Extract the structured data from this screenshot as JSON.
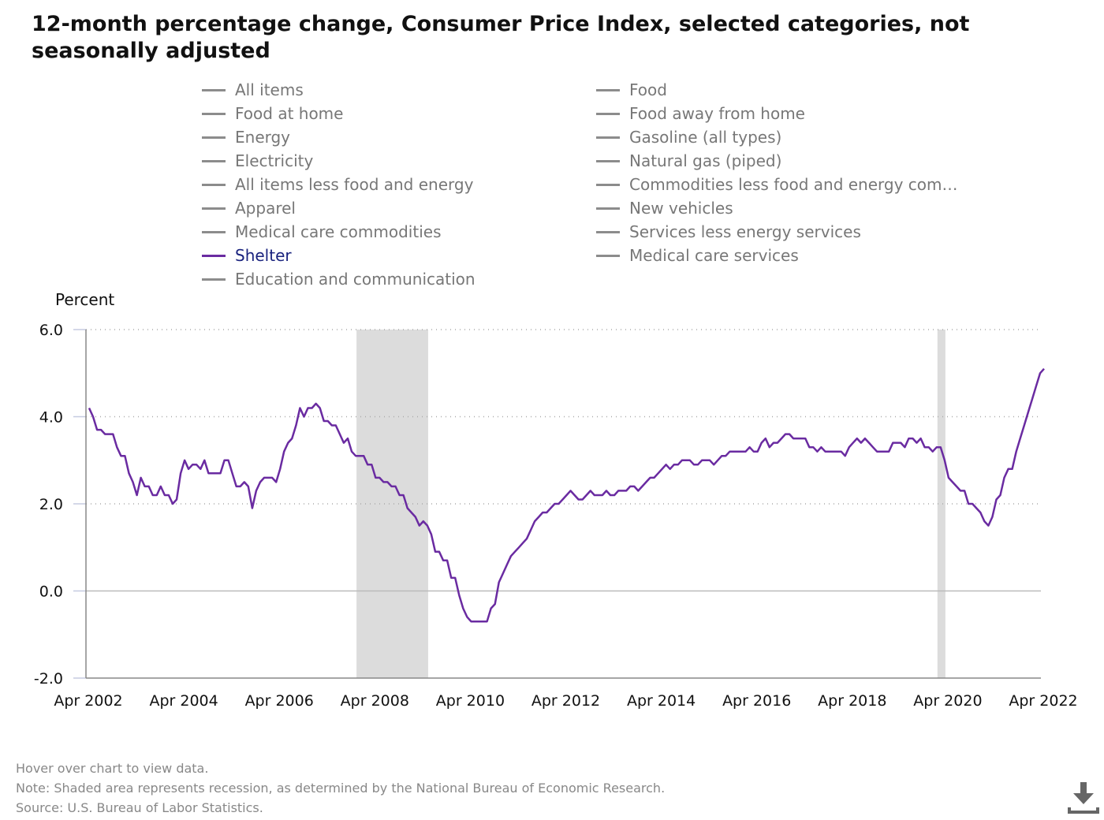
{
  "title": "12-month percentage change, Consumer Price Index, selected categories, not seasonally adjusted",
  "legend": {
    "left": [
      {
        "label": "All items",
        "active": false
      },
      {
        "label": "Food at home",
        "active": false
      },
      {
        "label": "Energy",
        "active": false
      },
      {
        "label": "Electricity",
        "active": false
      },
      {
        "label": "All items less food and energy",
        "active": false
      },
      {
        "label": "Apparel",
        "active": false
      },
      {
        "label": "Medical care commodities",
        "active": false
      },
      {
        "label": "Shelter",
        "active": true
      },
      {
        "label": "Education and communication",
        "active": false
      }
    ],
    "right": [
      {
        "label": "Food",
        "active": false
      },
      {
        "label": "Food away from home",
        "active": false
      },
      {
        "label": "Gasoline (all types)",
        "active": false
      },
      {
        "label": "Natural gas (piped)",
        "active": false
      },
      {
        "label": "Commodities less food and energy com…",
        "active": false
      },
      {
        "label": "New vehicles",
        "active": false
      },
      {
        "label": "Services less energy services",
        "active": false
      },
      {
        "label": "Medical care services",
        "active": false
      }
    ]
  },
  "chart_data": {
    "type": "line",
    "ylabel": "Percent",
    "ylim": [
      -2.0,
      6.0
    ],
    "yticks": [
      "6.0",
      "4.0",
      "2.0",
      "0.0",
      "-2.0"
    ],
    "ytick_values": [
      6,
      4,
      2,
      0,
      -2
    ],
    "x_range": [
      "2002-04",
      "2022-04"
    ],
    "xticks": [
      "Apr 2002",
      "Apr 2004",
      "Apr 2006",
      "Apr 2008",
      "Apr 2010",
      "Apr 2012",
      "Apr 2014",
      "Apr 2016",
      "Apr 2018",
      "Apr 2020",
      "Apr 2022"
    ],
    "xtick_values": [
      "2002-04",
      "2004-04",
      "2006-04",
      "2008-04",
      "2010-04",
      "2012-04",
      "2014-04",
      "2016-04",
      "2018-04",
      "2020-04",
      "2022-04"
    ],
    "recessions": [
      {
        "start": "2007-12",
        "end": "2009-06"
      },
      {
        "start": "2020-02",
        "end": "2020-04"
      }
    ],
    "grid": true,
    "colors": {
      "series": "#6a2ba1",
      "recession": "#dcdcdc",
      "grid": "#aaaaaa",
      "axis": "#888888"
    },
    "series": [
      {
        "name": "Shelter",
        "points": [
          [
            "2002-04",
            4.2
          ],
          [
            "2002-05",
            4.0
          ],
          [
            "2002-06",
            3.7
          ],
          [
            "2002-07",
            3.7
          ],
          [
            "2002-08",
            3.6
          ],
          [
            "2002-09",
            3.6
          ],
          [
            "2002-10",
            3.6
          ],
          [
            "2002-11",
            3.3
          ],
          [
            "2002-12",
            3.1
          ],
          [
            "2003-01",
            3.1
          ],
          [
            "2003-02",
            2.7
          ],
          [
            "2003-03",
            2.5
          ],
          [
            "2003-04",
            2.2
          ],
          [
            "2003-05",
            2.6
          ],
          [
            "2003-06",
            2.4
          ],
          [
            "2003-07",
            2.4
          ],
          [
            "2003-08",
            2.2
          ],
          [
            "2003-09",
            2.2
          ],
          [
            "2003-10",
            2.4
          ],
          [
            "2003-11",
            2.2
          ],
          [
            "2003-12",
            2.2
          ],
          [
            "2004-01",
            2.0
          ],
          [
            "2004-02",
            2.1
          ],
          [
            "2004-03",
            2.7
          ],
          [
            "2004-04",
            3.0
          ],
          [
            "2004-05",
            2.8
          ],
          [
            "2004-06",
            2.9
          ],
          [
            "2004-07",
            2.9
          ],
          [
            "2004-08",
            2.8
          ],
          [
            "2004-09",
            3.0
          ],
          [
            "2004-10",
            2.7
          ],
          [
            "2004-11",
            2.7
          ],
          [
            "2004-12",
            2.7
          ],
          [
            "2005-01",
            2.7
          ],
          [
            "2005-02",
            3.0
          ],
          [
            "2005-03",
            3.0
          ],
          [
            "2005-04",
            2.7
          ],
          [
            "2005-05",
            2.4
          ],
          [
            "2005-06",
            2.4
          ],
          [
            "2005-07",
            2.5
          ],
          [
            "2005-08",
            2.4
          ],
          [
            "2005-09",
            1.9
          ],
          [
            "2005-10",
            2.3
          ],
          [
            "2005-11",
            2.5
          ],
          [
            "2005-12",
            2.6
          ],
          [
            "2006-01",
            2.6
          ],
          [
            "2006-02",
            2.6
          ],
          [
            "2006-03",
            2.5
          ],
          [
            "2006-04",
            2.8
          ],
          [
            "2006-05",
            3.2
          ],
          [
            "2006-06",
            3.4
          ],
          [
            "2006-07",
            3.5
          ],
          [
            "2006-08",
            3.8
          ],
          [
            "2006-09",
            4.2
          ],
          [
            "2006-10",
            4.0
          ],
          [
            "2006-11",
            4.2
          ],
          [
            "2006-12",
            4.2
          ],
          [
            "2007-01",
            4.3
          ],
          [
            "2007-02",
            4.2
          ],
          [
            "2007-03",
            3.9
          ],
          [
            "2007-04",
            3.9
          ],
          [
            "2007-05",
            3.8
          ],
          [
            "2007-06",
            3.8
          ],
          [
            "2007-07",
            3.6
          ],
          [
            "2007-08",
            3.4
          ],
          [
            "2007-09",
            3.5
          ],
          [
            "2007-10",
            3.2
          ],
          [
            "2007-11",
            3.1
          ],
          [
            "2007-12",
            3.1
          ],
          [
            "2008-01",
            3.1
          ],
          [
            "2008-02",
            2.9
          ],
          [
            "2008-03",
            2.9
          ],
          [
            "2008-04",
            2.6
          ],
          [
            "2008-05",
            2.6
          ],
          [
            "2008-06",
            2.5
          ],
          [
            "2008-07",
            2.5
          ],
          [
            "2008-08",
            2.4
          ],
          [
            "2008-09",
            2.4
          ],
          [
            "2008-10",
            2.2
          ],
          [
            "2008-11",
            2.2
          ],
          [
            "2008-12",
            1.9
          ],
          [
            "2009-01",
            1.8
          ],
          [
            "2009-02",
            1.7
          ],
          [
            "2009-03",
            1.5
          ],
          [
            "2009-04",
            1.6
          ],
          [
            "2009-05",
            1.5
          ],
          [
            "2009-06",
            1.3
          ],
          [
            "2009-07",
            0.9
          ],
          [
            "2009-08",
            0.9
          ],
          [
            "2009-09",
            0.7
          ],
          [
            "2009-10",
            0.7
          ],
          [
            "2009-11",
            0.3
          ],
          [
            "2009-12",
            0.3
          ],
          [
            "2010-01",
            -0.1
          ],
          [
            "2010-02",
            -0.4
          ],
          [
            "2010-03",
            -0.6
          ],
          [
            "2010-04",
            -0.7
          ],
          [
            "2010-05",
            -0.7
          ],
          [
            "2010-06",
            -0.7
          ],
          [
            "2010-07",
            -0.7
          ],
          [
            "2010-08",
            -0.7
          ],
          [
            "2010-09",
            -0.4
          ],
          [
            "2010-10",
            -0.3
          ],
          [
            "2010-11",
            0.2
          ],
          [
            "2010-12",
            0.4
          ],
          [
            "2011-01",
            0.6
          ],
          [
            "2011-02",
            0.8
          ],
          [
            "2011-03",
            0.9
          ],
          [
            "2011-04",
            1.0
          ],
          [
            "2011-05",
            1.1
          ],
          [
            "2011-06",
            1.2
          ],
          [
            "2011-07",
            1.4
          ],
          [
            "2011-08",
            1.6
          ],
          [
            "2011-09",
            1.7
          ],
          [
            "2011-10",
            1.8
          ],
          [
            "2011-11",
            1.8
          ],
          [
            "2011-12",
            1.9
          ],
          [
            "2012-01",
            2.0
          ],
          [
            "2012-02",
            2.0
          ],
          [
            "2012-03",
            2.1
          ],
          [
            "2012-04",
            2.2
          ],
          [
            "2012-05",
            2.3
          ],
          [
            "2012-06",
            2.2
          ],
          [
            "2012-07",
            2.1
          ],
          [
            "2012-08",
            2.1
          ],
          [
            "2012-09",
            2.2
          ],
          [
            "2012-10",
            2.3
          ],
          [
            "2012-11",
            2.2
          ],
          [
            "2012-12",
            2.2
          ],
          [
            "2013-01",
            2.2
          ],
          [
            "2013-02",
            2.3
          ],
          [
            "2013-03",
            2.2
          ],
          [
            "2013-04",
            2.2
          ],
          [
            "2013-05",
            2.3
          ],
          [
            "2013-06",
            2.3
          ],
          [
            "2013-07",
            2.3
          ],
          [
            "2013-08",
            2.4
          ],
          [
            "2013-09",
            2.4
          ],
          [
            "2013-10",
            2.3
          ],
          [
            "2013-11",
            2.4
          ],
          [
            "2013-12",
            2.5
          ],
          [
            "2014-01",
            2.6
          ],
          [
            "2014-02",
            2.6
          ],
          [
            "2014-03",
            2.7
          ],
          [
            "2014-04",
            2.8
          ],
          [
            "2014-05",
            2.9
          ],
          [
            "2014-06",
            2.8
          ],
          [
            "2014-07",
            2.9
          ],
          [
            "2014-08",
            2.9
          ],
          [
            "2014-09",
            3.0
          ],
          [
            "2014-10",
            3.0
          ],
          [
            "2014-11",
            3.0
          ],
          [
            "2014-12",
            2.9
          ],
          [
            "2015-01",
            2.9
          ],
          [
            "2015-02",
            3.0
          ],
          [
            "2015-03",
            3.0
          ],
          [
            "2015-04",
            3.0
          ],
          [
            "2015-05",
            2.9
          ],
          [
            "2015-06",
            3.0
          ],
          [
            "2015-07",
            3.1
          ],
          [
            "2015-08",
            3.1
          ],
          [
            "2015-09",
            3.2
          ],
          [
            "2015-10",
            3.2
          ],
          [
            "2015-11",
            3.2
          ],
          [
            "2015-12",
            3.2
          ],
          [
            "2016-01",
            3.2
          ],
          [
            "2016-02",
            3.3
          ],
          [
            "2016-03",
            3.2
          ],
          [
            "2016-04",
            3.2
          ],
          [
            "2016-05",
            3.4
          ],
          [
            "2016-06",
            3.5
          ],
          [
            "2016-07",
            3.3
          ],
          [
            "2016-08",
            3.4
          ],
          [
            "2016-09",
            3.4
          ],
          [
            "2016-10",
            3.5
          ],
          [
            "2016-11",
            3.6
          ],
          [
            "2016-12",
            3.6
          ],
          [
            "2017-01",
            3.5
          ],
          [
            "2017-02",
            3.5
          ],
          [
            "2017-03",
            3.5
          ],
          [
            "2017-04",
            3.5
          ],
          [
            "2017-05",
            3.3
          ],
          [
            "2017-06",
            3.3
          ],
          [
            "2017-07",
            3.2
          ],
          [
            "2017-08",
            3.3
          ],
          [
            "2017-09",
            3.2
          ],
          [
            "2017-10",
            3.2
          ],
          [
            "2017-11",
            3.2
          ],
          [
            "2017-12",
            3.2
          ],
          [
            "2018-01",
            3.2
          ],
          [
            "2018-02",
            3.1
          ],
          [
            "2018-03",
            3.3
          ],
          [
            "2018-04",
            3.4
          ],
          [
            "2018-05",
            3.5
          ],
          [
            "2018-06",
            3.4
          ],
          [
            "2018-07",
            3.5
          ],
          [
            "2018-08",
            3.4
          ],
          [
            "2018-09",
            3.3
          ],
          [
            "2018-10",
            3.2
          ],
          [
            "2018-11",
            3.2
          ],
          [
            "2018-12",
            3.2
          ],
          [
            "2019-01",
            3.2
          ],
          [
            "2019-02",
            3.4
          ],
          [
            "2019-03",
            3.4
          ],
          [
            "2019-04",
            3.4
          ],
          [
            "2019-05",
            3.3
          ],
          [
            "2019-06",
            3.5
          ],
          [
            "2019-07",
            3.5
          ],
          [
            "2019-08",
            3.4
          ],
          [
            "2019-09",
            3.5
          ],
          [
            "2019-10",
            3.3
          ],
          [
            "2019-11",
            3.3
          ],
          [
            "2019-12",
            3.2
          ],
          [
            "2020-01",
            3.3
          ],
          [
            "2020-02",
            3.3
          ],
          [
            "2020-03",
            3.0
          ],
          [
            "2020-04",
            2.6
          ],
          [
            "2020-05",
            2.5
          ],
          [
            "2020-06",
            2.4
          ],
          [
            "2020-07",
            2.3
          ],
          [
            "2020-08",
            2.3
          ],
          [
            "2020-09",
            2.0
          ],
          [
            "2020-10",
            2.0
          ],
          [
            "2020-11",
            1.9
          ],
          [
            "2020-12",
            1.8
          ],
          [
            "2021-01",
            1.6
          ],
          [
            "2021-02",
            1.5
          ],
          [
            "2021-03",
            1.7
          ],
          [
            "2021-04",
            2.1
          ],
          [
            "2021-05",
            2.2
          ],
          [
            "2021-06",
            2.6
          ],
          [
            "2021-07",
            2.8
          ],
          [
            "2021-08",
            2.8
          ],
          [
            "2021-09",
            3.2
          ],
          [
            "2021-10",
            3.5
          ],
          [
            "2021-11",
            3.8
          ],
          [
            "2021-12",
            4.1
          ],
          [
            "2022-01",
            4.4
          ],
          [
            "2022-02",
            4.7
          ],
          [
            "2022-03",
            5.0
          ],
          [
            "2022-04",
            5.1
          ]
        ]
      }
    ]
  },
  "notes": {
    "hover": "Hover over chart to view data.",
    "note": "Note: Shaded area represents recession, as determined by the National Bureau of Economic Research.",
    "source": "Source: U.S. Bureau of Labor Statistics."
  },
  "icons": {
    "download": "download-icon"
  }
}
